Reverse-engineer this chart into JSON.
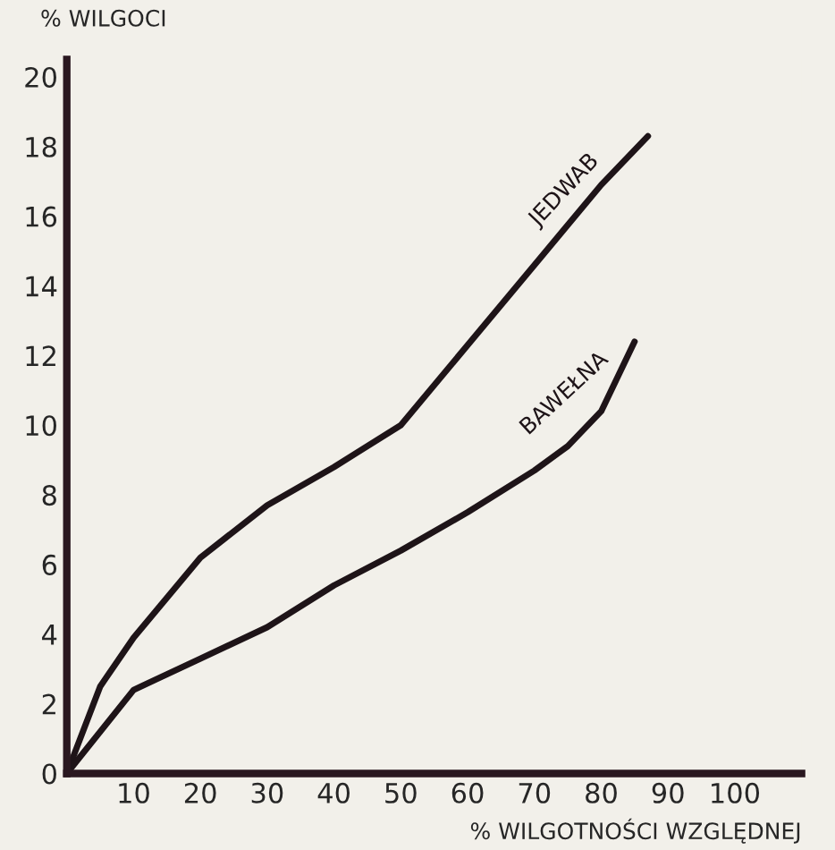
{
  "chart_data": {
    "type": "line",
    "xlabel": "% WILGOTNOŚCI WZGLĘDNEJ",
    "ylabel": "% WILGOCI",
    "xlim": [
      0,
      110
    ],
    "ylim": [
      0,
      20.5
    ],
    "xticks": [
      10,
      20,
      30,
      40,
      50,
      60,
      70,
      80,
      90,
      100
    ],
    "yticks": [
      0,
      2,
      4,
      6,
      8,
      10,
      12,
      14,
      16,
      18,
      20
    ],
    "grid": false,
    "legend": false,
    "marker": "none",
    "line_style": "solid",
    "series": [
      {
        "name": "JEDWAB",
        "color": "#1e1418",
        "x": [
          0,
          5,
          10,
          20,
          30,
          40,
          50,
          60,
          70,
          80,
          87
        ],
        "values": [
          0,
          2.5,
          3.9,
          6.2,
          7.7,
          8.8,
          10.0,
          12.3,
          14.6,
          16.9,
          18.3
        ]
      },
      {
        "name": "BAWEŁNA",
        "color": "#1e1418",
        "x": [
          0,
          10,
          20,
          30,
          40,
          50,
          60,
          70,
          75,
          80,
          85
        ],
        "values": [
          0,
          2.4,
          3.3,
          4.2,
          5.4,
          6.4,
          7.5,
          8.7,
          9.4,
          10.4,
          12.4
        ]
      }
    ]
  }
}
